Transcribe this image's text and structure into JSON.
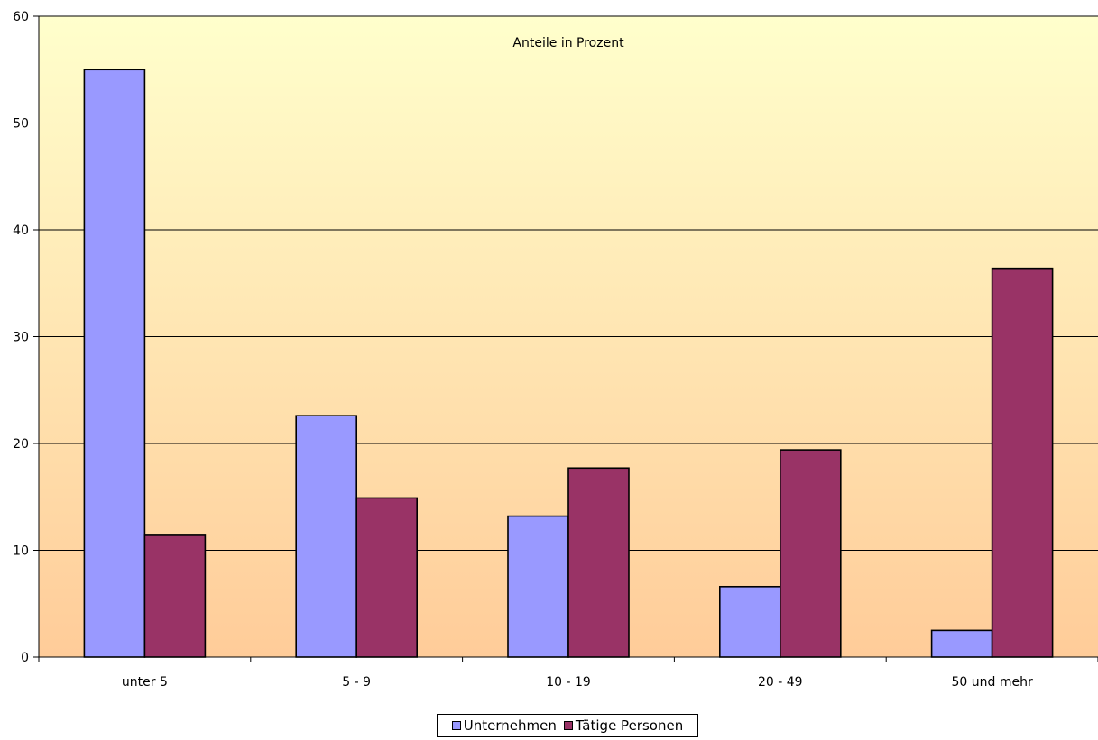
{
  "chart_data": {
    "type": "bar",
    "annotation": "Anteile in Prozent",
    "categories": [
      "unter 5",
      "5 - 9",
      "10 - 19",
      "20 - 49",
      "50 und mehr"
    ],
    "series": [
      {
        "name": "Unternehmen",
        "color": "#9999ff",
        "values": [
          55.0,
          22.6,
          13.2,
          6.6,
          2.5
        ]
      },
      {
        "name": "Tätige Personen",
        "color": "#993366",
        "values": [
          11.4,
          14.9,
          17.7,
          19.4,
          36.4
        ]
      }
    ],
    "ylim": [
      0,
      60
    ],
    "yticks": [
      "0",
      "10",
      "20",
      "30",
      "40",
      "50",
      "60"
    ],
    "grid": true,
    "legend_position": "bottom",
    "background_gradient": [
      "#ffffcc",
      "#ffcc99"
    ]
  }
}
